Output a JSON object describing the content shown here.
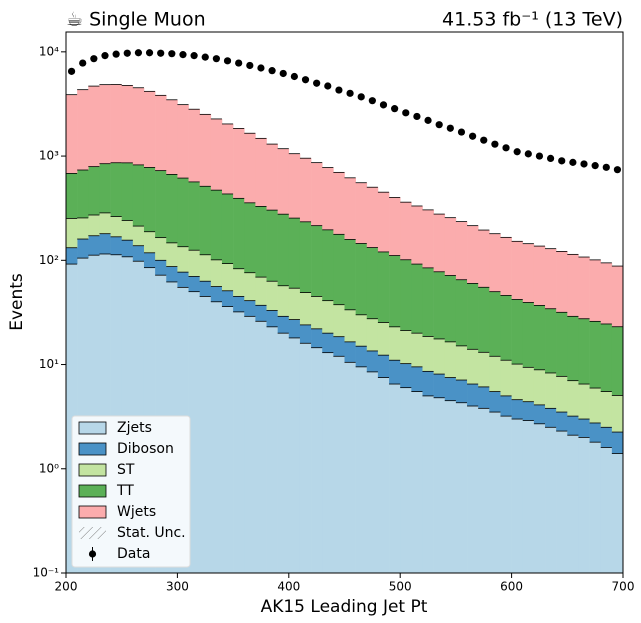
{
  "chart_data": {
    "type": "stacked_histogram",
    "title": "☕ Single Muon",
    "lumi_label": "41.53 fb⁻¹ (13 TeV)",
    "x_label": "AK15 Leading Jet Pt",
    "y_label": "Events",
    "log_y": true,
    "legend_position": "lower-left",
    "xlim": [
      200,
      700
    ],
    "xticks": [
      200,
      300,
      400,
      500,
      600,
      700
    ],
    "ylim": [
      0.1,
      15500
    ],
    "yticks": [
      {
        "value": 0.1,
        "label": "10⁻¹"
      },
      {
        "value": 1,
        "label": "10⁰"
      },
      {
        "value": 10,
        "label": "10¹"
      },
      {
        "value": 100,
        "label": "10²"
      },
      {
        "value": 1000,
        "label": "10³"
      },
      {
        "value": 10000,
        "label": "10⁴"
      }
    ],
    "bins": [
      200,
      210,
      220,
      230,
      240,
      250,
      260,
      270,
      280,
      290,
      300,
      310,
      320,
      330,
      340,
      350,
      360,
      370,
      380,
      390,
      400,
      410,
      420,
      430,
      440,
      450,
      460,
      470,
      480,
      490,
      500,
      510,
      520,
      530,
      540,
      550,
      560,
      570,
      580,
      590,
      600,
      610,
      620,
      630,
      640,
      650,
      660,
      670,
      680,
      690,
      700
    ],
    "series": [
      {
        "name": "Zjets",
        "color": "#b7d7e8",
        "values": [
          92,
          105,
          112,
          115,
          113,
          108,
          98,
          85,
          72,
          62,
          55,
          50,
          45,
          40,
          36,
          32,
          29,
          26,
          23,
          20,
          18,
          16,
          14.5,
          13,
          12,
          10.5,
          9.5,
          8.5,
          7.5,
          6.5,
          6,
          5.5,
          5,
          4.8,
          4.5,
          4.3,
          4,
          3.8,
          3.5,
          3.2,
          3,
          2.9,
          2.7,
          2.5,
          2.3,
          2.1,
          2,
          1.8,
          1.6,
          1.4
        ]
      },
      {
        "name": "Diboson",
        "color": "#4a92c6",
        "values": [
          40,
          55,
          60,
          65,
          55,
          48,
          40,
          33,
          28,
          25,
          22,
          20,
          18,
          16,
          15,
          13,
          12,
          11,
          10,
          9,
          9,
          8,
          7.5,
          7,
          6.5,
          6,
          5.5,
          5,
          4.8,
          4.5,
          4.2,
          4,
          3.6,
          3.3,
          3,
          2.8,
          2.5,
          2.3,
          2,
          1.8,
          1.6,
          1.5,
          1.4,
          1.3,
          1.2,
          1.1,
          1,
          0.95,
          0.9,
          0.85
        ]
      },
      {
        "name": "ST",
        "color": "#c3e4a1",
        "values": [
          120,
          95,
          100,
          105,
          95,
          85,
          75,
          70,
          65,
          60,
          58,
          55,
          50,
          45,
          42,
          38,
          35,
          32,
          30,
          28,
          27,
          25,
          23,
          21,
          19,
          17,
          15,
          14,
          13,
          12,
          11,
          10.5,
          10,
          9.5,
          9,
          8,
          7.5,
          7,
          6.5,
          6,
          5.5,
          5,
          4.8,
          4.5,
          4.2,
          3.8,
          3.5,
          3.2,
          3,
          2.8
        ]
      },
      {
        "name": "TT",
        "color": "#5bb057",
        "values": [
          430,
          480,
          520,
          560,
          600,
          620,
          610,
          590,
          560,
          520,
          480,
          440,
          400,
          370,
          340,
          310,
          280,
          260,
          240,
          220,
          200,
          185,
          170,
          155,
          140,
          125,
          115,
          105,
          95,
          88,
          80,
          72,
          66,
          60,
          55,
          50,
          46,
          42,
          38,
          35,
          32,
          30,
          28,
          26,
          24,
          22,
          21,
          20,
          19,
          18
        ]
      },
      {
        "name": "Wjets",
        "color": "#fbacad",
        "values": [
          3200,
          3600,
          3900,
          4000,
          4000,
          3900,
          3700,
          3400,
          3100,
          2800,
          2500,
          2250,
          2000,
          1800,
          1600,
          1450,
          1300,
          1150,
          1000,
          900,
          800,
          720,
          650,
          580,
          520,
          460,
          410,
          370,
          330,
          290,
          260,
          240,
          220,
          200,
          185,
          170,
          155,
          140,
          130,
          120,
          110,
          105,
          100,
          95,
          90,
          85,
          80,
          75,
          70,
          65
        ]
      }
    ],
    "uncertainty_label": "Stat. Unc.",
    "data": {
      "name": "Data",
      "color": "#000000",
      "values": [
        6500,
        7800,
        8600,
        9200,
        9500,
        9700,
        9800,
        9800,
        9700,
        9600,
        9400,
        9200,
        8900,
        8600,
        8200,
        7800,
        7400,
        7000,
        6600,
        6200,
        5800,
        5400,
        5000,
        4700,
        4300,
        4000,
        3700,
        3400,
        3100,
        2850,
        2600,
        2400,
        2200,
        2000,
        1850,
        1700,
        1550,
        1420,
        1300,
        1200,
        1100,
        1050,
        1000,
        950,
        900,
        870,
        840,
        810,
        780,
        740
      ]
    }
  }
}
